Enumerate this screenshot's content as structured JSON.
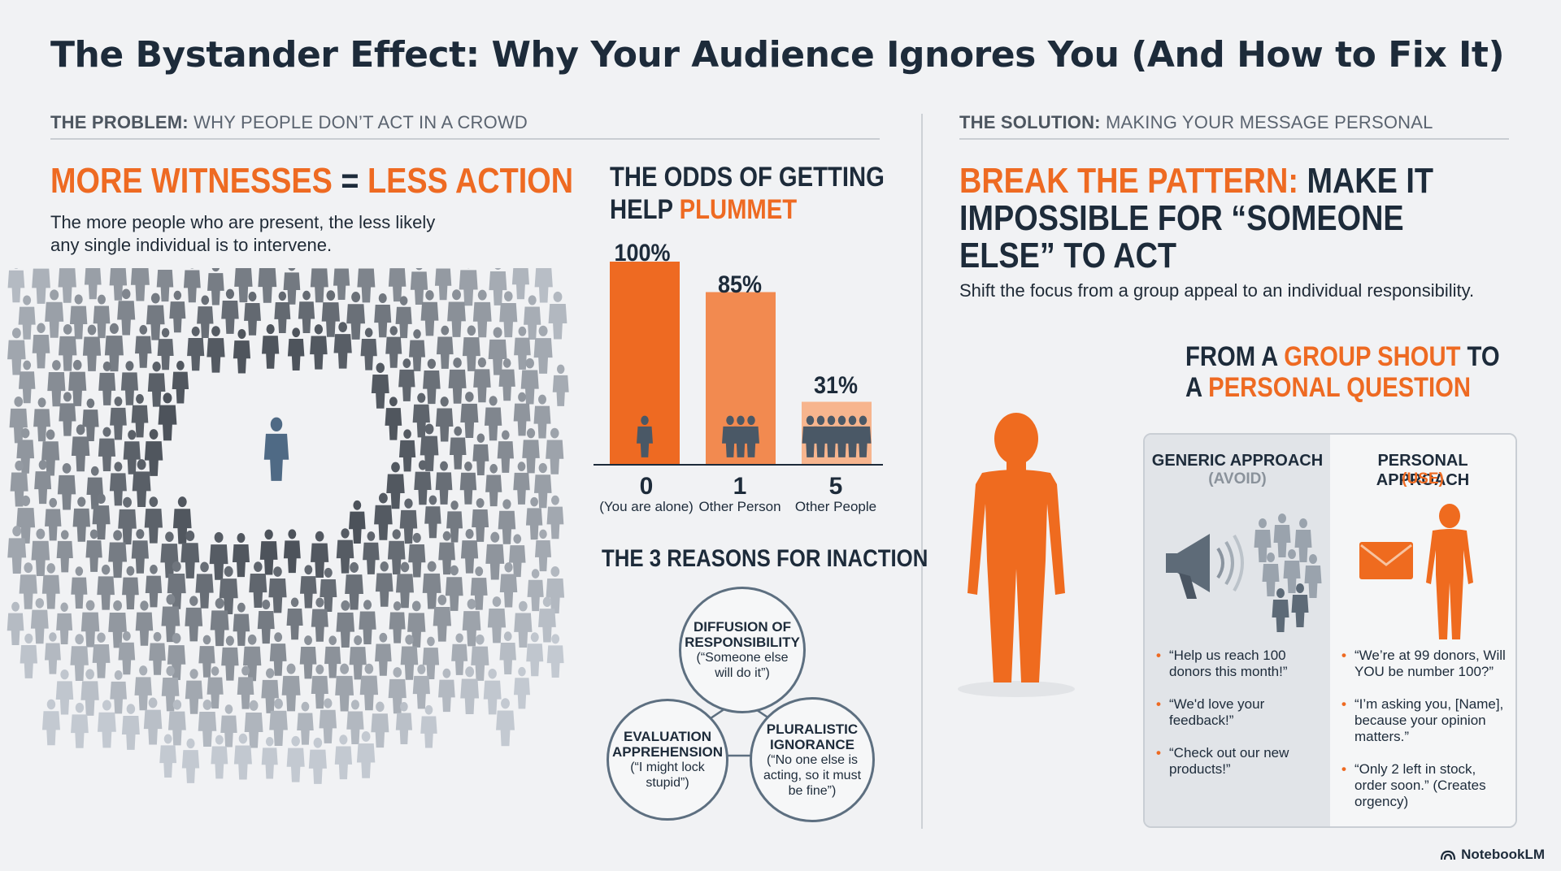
{
  "title": "The Bystander Effect: Why Your Audience Ignores You (And How to Fix It)",
  "problem": {
    "section_label_bold": "THE PROBLEM:",
    "section_label_rest": " WHY PEOPLE DON’T ACT IN A CROWD",
    "headline_part1": "MORE WITNESSES",
    "headline_eq": " = ",
    "headline_part2": "LESS ACTION",
    "description_line1": "The more people who are present, the less likely",
    "description_line2": "any single individual is to intervene."
  },
  "odds": {
    "heading_line1": "THE ODDS OF GETTING",
    "heading_line2_plain": "HELP ",
    "heading_line2_orange": "PLUMMET"
  },
  "chart_data": {
    "type": "bar",
    "categories": [
      "0",
      "1",
      "5"
    ],
    "category_sublabels": [
      "(You are alone)",
      "Other Person",
      "Other People"
    ],
    "values": [
      100,
      85,
      31
    ],
    "value_labels": [
      "100%",
      "85%",
      "31%"
    ],
    "ylim": [
      0,
      100
    ],
    "colors": [
      "#ee6a22",
      "#f28a50",
      "#f7b58e"
    ]
  },
  "reasons": {
    "heading": "THE 3 REASONS FOR INACTION",
    "items": [
      {
        "title_line1": "DIFFUSION OF",
        "title_line2": "RESPONSIBILITY",
        "sub_line1": "(“Someone else",
        "sub_line2": "will do it”)",
        "sub_line3": ""
      },
      {
        "title_line1": "EVALUATION",
        "title_line2": "APPREHENSION",
        "sub_line1": "(“I might lock",
        "sub_line2": "stupid”)",
        "sub_line3": ""
      },
      {
        "title_line1": "PLURALISTIC",
        "title_line2": "IGNORANCE",
        "sub_line1": "(“No one else is",
        "sub_line2": "acting, so it must",
        "sub_line3": "be fine”)"
      }
    ]
  },
  "solution": {
    "section_label_bold": "THE SOLUTION:",
    "section_label_rest": " MAKING YOUR MESSAGE PERSONAL",
    "headline_line1_orange": "BREAK THE PATTERN:",
    "headline_line1_plain": " MAKE IT",
    "headline_line2": "IMPOSSIBLE FOR “SOMEONE",
    "headline_line3": "ELSE” TO ACT",
    "description": "Shift the focus from a group appeal to an individual responsibility.",
    "sub_head_line1_plain1": "FROM A ",
    "sub_head_line1_orange": "GROUP SHOUT",
    "sub_head_line1_plain2": " TO",
    "sub_head_line2_plain": "A ",
    "sub_head_line2_orange": "PERSONAL QUESTION"
  },
  "comparison": {
    "generic": {
      "heading": "GENERIC APPROACH",
      "tag": "(AVOID)",
      "bullets": [
        "“Help us reach 100 donors this month!”",
        "“We'd love your feedback!”",
        "“Check out our new products!”"
      ]
    },
    "personal": {
      "heading": "PERSONAL APPROACH",
      "tag": "(USE)",
      "bullets": [
        "“We’re at 99 donors, Will YOU be number 100?”",
        "“I’m asking you, [Name], because your opinion matters.”",
        "“Only 2 left in stock, order soon.” (Creates orgency)"
      ]
    }
  },
  "footer": {
    "brand": "NotebookLM"
  },
  "colors": {
    "accent": "#ee6a22",
    "text": "#1d2b3a",
    "crowd": "#6b7785"
  }
}
